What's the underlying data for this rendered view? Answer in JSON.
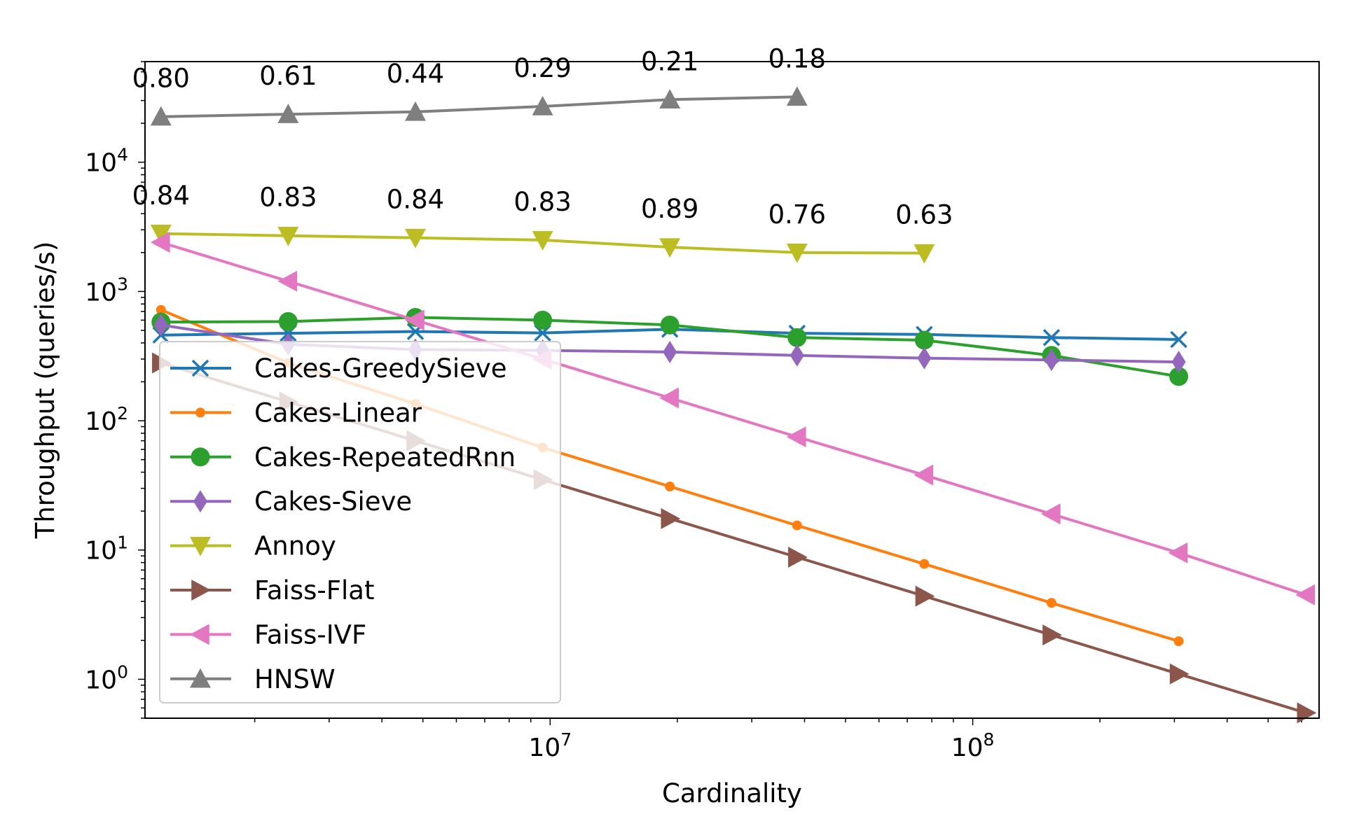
{
  "chart_data": {
    "type": "line",
    "xlabel": "Cardinality",
    "ylabel": "Throughput (queries/s)",
    "xscale": "log",
    "yscale": "log",
    "xlim": [
      1100000,
      660000000
    ],
    "ylim": [
      0.5,
      60000
    ],
    "legend_position": "lower-left",
    "x_tick_labels": [
      {
        "value": 10000000,
        "base": "10",
        "exp": "7"
      },
      {
        "value": 100000000,
        "base": "10",
        "exp": "8"
      }
    ],
    "y_tick_labels": [
      {
        "value": 1,
        "base": "10",
        "exp": "0"
      },
      {
        "value": 10,
        "base": "10",
        "exp": "1"
      },
      {
        "value": 100,
        "base": "10",
        "exp": "2"
      },
      {
        "value": 1000,
        "base": "10",
        "exp": "3"
      },
      {
        "value": 10000,
        "base": "10",
        "exp": "4"
      }
    ],
    "series": [
      {
        "name": "Cakes-GreedySieve",
        "color": "#1f77b4",
        "marker": "x",
        "x": [
          1200000,
          2400000,
          4800000,
          9600000,
          19200000,
          38400000,
          76800000,
          153600000,
          307200000
        ],
        "y": [
          460,
          475,
          490,
          478,
          510,
          475,
          465,
          440,
          425
        ]
      },
      {
        "name": "Cakes-Linear",
        "color": "#ff7f0e",
        "marker": "point",
        "x": [
          1200000,
          2400000,
          4800000,
          9600000,
          19200000,
          38400000,
          76800000,
          153600000,
          307200000
        ],
        "y": [
          720,
          280,
          135,
          62,
          31,
          15.5,
          7.8,
          3.9,
          1.97
        ]
      },
      {
        "name": "Cakes-RepeatedRnn",
        "color": "#2ca02c",
        "marker": "circle",
        "x": [
          1200000,
          2400000,
          4800000,
          9600000,
          19200000,
          38400000,
          76800000,
          153600000,
          307200000
        ],
        "y": [
          580,
          585,
          630,
          600,
          550,
          440,
          420,
          320,
          220
        ]
      },
      {
        "name": "Cakes-Sieve",
        "color": "#9467bd",
        "marker": "thin-diamond",
        "x": [
          1200000,
          2400000,
          4800000,
          9600000,
          19200000,
          38400000,
          76800000,
          153600000,
          307200000
        ],
        "y": [
          550,
          390,
          355,
          350,
          340,
          320,
          305,
          295,
          285
        ]
      },
      {
        "name": "Annoy",
        "color": "#bcbd22",
        "marker": "triangle-down",
        "x": [
          1200000,
          2400000,
          4800000,
          9600000,
          19200000,
          38400000,
          76800000
        ],
        "y": [
          2800,
          2700,
          2600,
          2500,
          2200,
          2000,
          1980
        ],
        "annotations": [
          "0.84",
          "0.83",
          "0.84",
          "0.83",
          "0.89",
          "0.76",
          "0.63"
        ]
      },
      {
        "name": "Faiss-Flat",
        "color": "#8c564b",
        "marker": "triangle-right",
        "x": [
          1200000,
          2400000,
          4800000,
          9600000,
          19200000,
          38400000,
          76800000,
          153600000,
          307200000,
          614400000
        ],
        "y": [
          280,
          140,
          70,
          35,
          17.5,
          8.8,
          4.4,
          2.2,
          1.1,
          0.55
        ]
      },
      {
        "name": "Faiss-IVF",
        "color": "#e377c2",
        "marker": "triangle-left",
        "x": [
          1200000,
          2400000,
          4800000,
          9600000,
          19200000,
          38400000,
          76800000,
          153600000,
          307200000,
          614400000
        ],
        "y": [
          2400,
          1200,
          600,
          300,
          150,
          75,
          38,
          19,
          9.5,
          4.5
        ]
      },
      {
        "name": "HNSW",
        "color": "#7f7f7f",
        "marker": "triangle-up",
        "x": [
          1200000,
          2400000,
          4800000,
          9600000,
          19200000,
          38400000
        ],
        "y": [
          22500,
          23500,
          24500,
          27000,
          30500,
          32000
        ],
        "annotations": [
          "0.80",
          "0.61",
          "0.44",
          "0.29",
          "0.21",
          "0.18"
        ]
      }
    ]
  }
}
